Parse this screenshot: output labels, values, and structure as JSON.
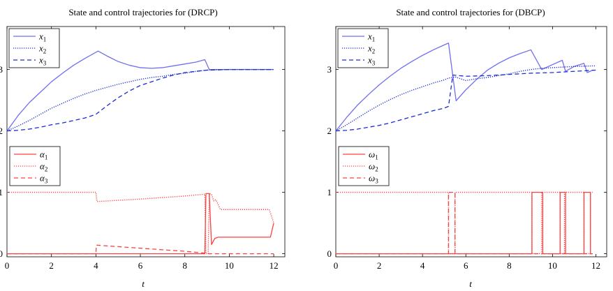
{
  "colors": {
    "state": "#6f6ff0",
    "state_dash": "#1a2bd6",
    "control": "#ff4040",
    "axis": "#000000"
  },
  "chart_data": [
    {
      "type": "line",
      "title": "State and control trajectories for (DRCP)",
      "xlabel": "t",
      "ylabel": "",
      "xlim": [
        0,
        12.5
      ],
      "ylim": [
        -0.05,
        3.7
      ],
      "xticks": [
        "0",
        "2",
        "4",
        "6",
        "8",
        "10",
        "12"
      ],
      "yticks": [
        "0",
        "1",
        "2",
        "3"
      ],
      "legends": [
        {
          "position": "top-left",
          "entries": [
            {
              "label": "x",
              "sub": "1",
              "style": "solid",
              "color": "state"
            },
            {
              "label": "x",
              "sub": "2",
              "style": "dotted",
              "color": "state_dash"
            },
            {
              "label": "x",
              "sub": "3",
              "style": "dashed",
              "color": "state_dash"
            }
          ]
        },
        {
          "position": "middle-left",
          "entries": [
            {
              "label": "α",
              "sub": "1",
              "style": "solid",
              "color": "control"
            },
            {
              "label": "α",
              "sub": "2",
              "style": "dotted",
              "color": "control"
            },
            {
              "label": "α",
              "sub": "3",
              "style": "dashed",
              "color": "control"
            }
          ]
        }
      ],
      "series": [
        {
          "name": "x1",
          "style": "solid",
          "color": "state",
          "points": [
            [
              0,
              2
            ],
            [
              0.5,
              2.25
            ],
            [
              1,
              2.46
            ],
            [
              1.5,
              2.63
            ],
            [
              2,
              2.8
            ],
            [
              2.5,
              2.94
            ],
            [
              3,
              3.07
            ],
            [
              3.5,
              3.18
            ],
            [
              4,
              3.28
            ],
            [
              4.1,
              3.3
            ],
            [
              4.5,
              3.22
            ],
            [
              5,
              3.13
            ],
            [
              5.5,
              3.07
            ],
            [
              6,
              3.03
            ],
            [
              6.5,
              3.02
            ],
            [
              7,
              3.03
            ],
            [
              7.5,
              3.06
            ],
            [
              8,
              3.09
            ],
            [
              8.5,
              3.12
            ],
            [
              8.9,
              3.16
            ],
            [
              9.1,
              3.0
            ],
            [
              10,
              3.0
            ],
            [
              11,
              3.0
            ],
            [
              12,
              3.0
            ]
          ]
        },
        {
          "name": "x2",
          "style": "dotted",
          "color": "state_dash",
          "points": [
            [
              0,
              2
            ],
            [
              0.5,
              2.08
            ],
            [
              1,
              2.17
            ],
            [
              1.5,
              2.27
            ],
            [
              2,
              2.37
            ],
            [
              2.5,
              2.45
            ],
            [
              3,
              2.53
            ],
            [
              3.5,
              2.6
            ],
            [
              4,
              2.66
            ],
            [
              4.5,
              2.71
            ],
            [
              5,
              2.76
            ],
            [
              5.5,
              2.8
            ],
            [
              6,
              2.84
            ],
            [
              6.5,
              2.87
            ],
            [
              7,
              2.89
            ],
            [
              7.5,
              2.92
            ],
            [
              8,
              2.94
            ],
            [
              8.5,
              2.97
            ],
            [
              9,
              2.99
            ],
            [
              10,
              3.0
            ],
            [
              11,
              3.0
            ],
            [
              12,
              3.0
            ]
          ]
        },
        {
          "name": "x3",
          "style": "dashed",
          "color": "state_dash",
          "points": [
            [
              0,
              2
            ],
            [
              0.5,
              2.01
            ],
            [
              1,
              2.03
            ],
            [
              1.5,
              2.06
            ],
            [
              2,
              2.1
            ],
            [
              2.5,
              2.13
            ],
            [
              3,
              2.17
            ],
            [
              3.5,
              2.21
            ],
            [
              4,
              2.27
            ],
            [
              4.5,
              2.41
            ],
            [
              5,
              2.54
            ],
            [
              5.5,
              2.65
            ],
            [
              6,
              2.74
            ],
            [
              6.5,
              2.8
            ],
            [
              7,
              2.86
            ],
            [
              7.5,
              2.91
            ],
            [
              8,
              2.95
            ],
            [
              8.5,
              2.97
            ],
            [
              9,
              2.99
            ],
            [
              10,
              3.0
            ],
            [
              11,
              3.0
            ],
            [
              12,
              3.0
            ]
          ]
        },
        {
          "name": "α1",
          "style": "solid",
          "color": "control",
          "points": [
            [
              0,
              0
            ],
            [
              8.9,
              0
            ],
            [
              8.95,
              0.98
            ],
            [
              9.1,
              0.98
            ],
            [
              9.2,
              0.15
            ],
            [
              9.35,
              0.25
            ],
            [
              9.5,
              0.27
            ],
            [
              10,
              0.27
            ],
            [
              11,
              0.27
            ],
            [
              11.85,
              0.27
            ],
            [
              12,
              0.5
            ]
          ]
        },
        {
          "name": "α2",
          "style": "dotted",
          "color": "control",
          "points": [
            [
              0,
              1
            ],
            [
              4,
              1
            ],
            [
              4.05,
              0.85
            ],
            [
              6,
              0.89
            ],
            [
              8,
              0.94
            ],
            [
              8.9,
              0.97
            ],
            [
              8.95,
              0
            ],
            [
              9.05,
              0
            ],
            [
              9.1,
              0.98
            ],
            [
              9.2,
              0.97
            ],
            [
              9.3,
              0.86
            ],
            [
              9.4,
              0.88
            ],
            [
              9.6,
              0.72
            ],
            [
              11.8,
              0.72
            ],
            [
              12,
              0.5
            ]
          ]
        },
        {
          "name": "α3",
          "style": "dashed",
          "color": "control",
          "points": [
            [
              0,
              0
            ],
            [
              4,
              0
            ],
            [
              4.02,
              0.14
            ],
            [
              6,
              0.09
            ],
            [
              8,
              0.04
            ],
            [
              8.9,
              0.01
            ],
            [
              9,
              0
            ],
            [
              12,
              0
            ]
          ]
        }
      ]
    },
    {
      "type": "line",
      "title": "State and control trajectories for (DBCP)",
      "xlabel": "t",
      "ylabel": "",
      "xlim": [
        0,
        12.5
      ],
      "ylim": [
        -0.05,
        3.7
      ],
      "xticks": [
        "0",
        "2",
        "4",
        "6",
        "8",
        "10",
        "12"
      ],
      "yticks": [
        "0",
        "1",
        "2",
        "3"
      ],
      "legends": [
        {
          "position": "top-left",
          "entries": [
            {
              "label": "x",
              "sub": "1",
              "style": "solid",
              "color": "state"
            },
            {
              "label": "x",
              "sub": "2",
              "style": "dotted",
              "color": "state_dash"
            },
            {
              "label": "x",
              "sub": "3",
              "style": "dashed",
              "color": "state_dash"
            }
          ]
        },
        {
          "position": "middle-left",
          "entries": [
            {
              "label": "ω",
              "sub": "1",
              "style": "solid",
              "color": "control"
            },
            {
              "label": "ω",
              "sub": "2",
              "style": "dotted",
              "color": "control"
            },
            {
              "label": "ω",
              "sub": "3",
              "style": "dashed",
              "color": "control"
            }
          ]
        }
      ],
      "series": [
        {
          "name": "x1",
          "style": "solid",
          "color": "state",
          "points": [
            [
              0,
              2
            ],
            [
              0.5,
              2.22
            ],
            [
              1,
              2.42
            ],
            [
              1.5,
              2.59
            ],
            [
              2,
              2.75
            ],
            [
              2.5,
              2.89
            ],
            [
              3,
              3.02
            ],
            [
              3.5,
              3.13
            ],
            [
              4,
              3.23
            ],
            [
              4.5,
              3.32
            ],
            [
              5,
              3.4
            ],
            [
              5.2,
              3.43
            ],
            [
              5.55,
              2.49
            ],
            [
              6,
              2.67
            ],
            [
              6.5,
              2.84
            ],
            [
              7,
              2.99
            ],
            [
              7.5,
              3.1
            ],
            [
              8,
              3.19
            ],
            [
              8.5,
              3.26
            ],
            [
              9,
              3.32
            ],
            [
              9.5,
              3.0
            ],
            [
              10,
              3.08
            ],
            [
              10.45,
              3.15
            ],
            [
              10.6,
              2.97
            ],
            [
              11,
              3.05
            ],
            [
              11.45,
              3.1
            ],
            [
              11.6,
              2.95
            ],
            [
              11.8,
              2.98
            ]
          ]
        },
        {
          "name": "x2",
          "style": "dotted",
          "color": "state_dash",
          "points": [
            [
              0,
              2
            ],
            [
              0.5,
              2.1
            ],
            [
              1,
              2.21
            ],
            [
              1.5,
              2.32
            ],
            [
              2,
              2.42
            ],
            [
              2.5,
              2.51
            ],
            [
              3,
              2.59
            ],
            [
              3.5,
              2.66
            ],
            [
              4,
              2.72
            ],
            [
              4.5,
              2.78
            ],
            [
              5,
              2.83
            ],
            [
              5.2,
              2.86
            ],
            [
              5.5,
              2.88
            ],
            [
              6,
              2.82
            ],
            [
              6.5,
              2.85
            ],
            [
              7,
              2.87
            ],
            [
              7.5,
              2.9
            ],
            [
              8,
              2.93
            ],
            [
              8.5,
              2.97
            ],
            [
              9,
              3.0
            ],
            [
              9.5,
              3.02
            ],
            [
              10,
              3.03
            ],
            [
              11,
              3.05
            ],
            [
              12,
              3.06
            ]
          ]
        },
        {
          "name": "x3",
          "style": "dashed",
          "color": "state_dash",
          "points": [
            [
              0,
              2
            ],
            [
              0.5,
              2.01
            ],
            [
              1,
              2.03
            ],
            [
              1.5,
              2.06
            ],
            [
              2,
              2.09
            ],
            [
              2.5,
              2.13
            ],
            [
              3,
              2.18
            ],
            [
              3.5,
              2.23
            ],
            [
              4,
              2.28
            ],
            [
              4.5,
              2.33
            ],
            [
              5,
              2.37
            ],
            [
              5.2,
              2.4
            ],
            [
              5.4,
              2.91
            ],
            [
              6,
              2.89
            ],
            [
              7,
              2.9
            ],
            [
              8,
              2.92
            ],
            [
              9,
              2.94
            ],
            [
              10,
              2.95
            ],
            [
              11,
              2.97
            ],
            [
              12,
              2.99
            ]
          ]
        },
        {
          "name": "ω1",
          "style": "solid",
          "color": "control",
          "points": [
            [
              0,
              0
            ],
            [
              9.05,
              0
            ],
            [
              9.05,
              1
            ],
            [
              9.55,
              1
            ],
            [
              9.55,
              0
            ],
            [
              10.35,
              0
            ],
            [
              10.35,
              1
            ],
            [
              10.6,
              1
            ],
            [
              10.6,
              0
            ],
            [
              11.45,
              0
            ],
            [
              11.45,
              1
            ],
            [
              11.75,
              1
            ],
            [
              11.75,
              0
            ],
            [
              11.85,
              0
            ]
          ]
        },
        {
          "name": "ω2",
          "style": "dotted",
          "color": "control",
          "points": [
            [
              0,
              1
            ],
            [
              5.2,
              1
            ],
            [
              5.2,
              0
            ],
            [
              5.5,
              0
            ],
            [
              5.5,
              1
            ],
            [
              9.05,
              1
            ],
            [
              9.05,
              0
            ],
            [
              9.5,
              0
            ],
            [
              9.5,
              1
            ],
            [
              10.35,
              1
            ],
            [
              10.35,
              0
            ],
            [
              10.55,
              0
            ],
            [
              10.55,
              1
            ],
            [
              11.45,
              1
            ],
            [
              11.45,
              0
            ],
            [
              11.75,
              0
            ],
            [
              11.75,
              1
            ],
            [
              11.85,
              1
            ]
          ]
        },
        {
          "name": "ω3",
          "style": "dashed",
          "color": "control",
          "points": [
            [
              0,
              0
            ],
            [
              5.2,
              0
            ],
            [
              5.2,
              1
            ],
            [
              5.5,
              1
            ],
            [
              5.5,
              0
            ],
            [
              11.85,
              0
            ]
          ]
        }
      ]
    }
  ]
}
